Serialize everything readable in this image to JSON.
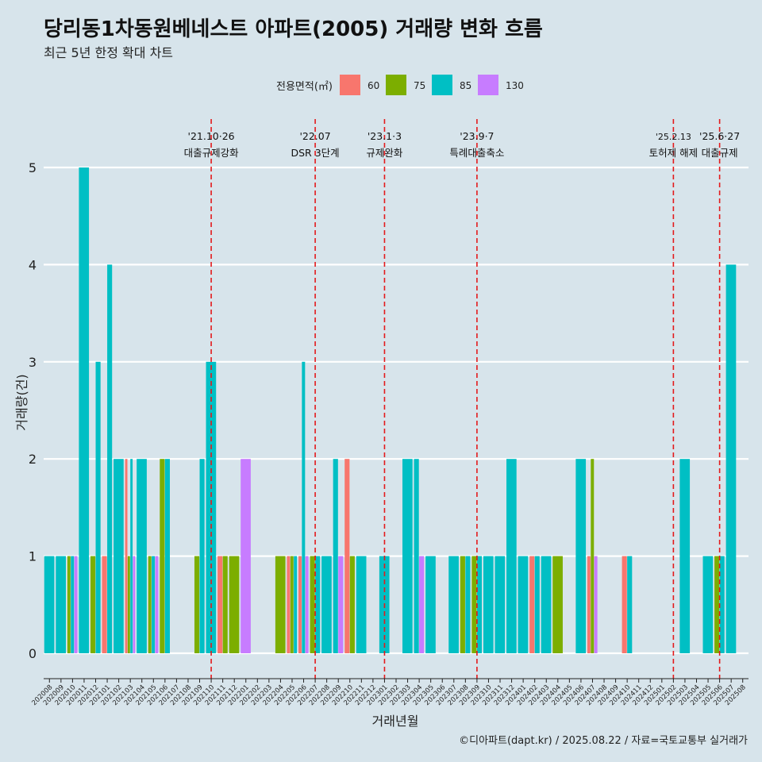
{
  "title": "당리동1차동원베네스트 아파트(2005) 거래량 변화 흐름",
  "subtitle": "최근 5년 한정 확대 차트",
  "footer": "©디아파트(dapt.kr) / 2025.08.22 / 자료=국토교통부 실거래가",
  "colors": {
    "60": "#f8766d",
    "75": "#7cae00",
    "85": "#00bfc4",
    "130": "#c77cff",
    "background": "#d7e4eb",
    "annotation_line": "#e31a1c"
  },
  "chart_data": {
    "type": "bar",
    "xlabel": "거래년월",
    "ylabel": "거래량(건)",
    "ylim": [
      0,
      5
    ],
    "yticks": [
      0,
      1,
      2,
      3,
      4,
      5
    ],
    "legend": {
      "title": "전용면적(㎡)",
      "position": "top",
      "entries": [
        "60",
        "75",
        "85",
        "130"
      ]
    },
    "grid": true,
    "categories": [
      "202008",
      "202009",
      "202010",
      "202011",
      "202012",
      "202101",
      "202102",
      "202103",
      "202104",
      "202105",
      "202106",
      "202107",
      "202108",
      "202109",
      "202110",
      "202111",
      "202112",
      "202201",
      "202202",
      "202203",
      "202204",
      "202205",
      "202206",
      "202207",
      "202208",
      "202209",
      "202210",
      "202211",
      "202212",
      "202301",
      "202302",
      "202303",
      "202304",
      "202305",
      "202306",
      "202307",
      "202308",
      "202309",
      "202310",
      "202311",
      "202312",
      "202401",
      "202402",
      "202403",
      "202404",
      "202405",
      "202406",
      "202407",
      "202408",
      "202409",
      "202410",
      "202411",
      "202412",
      "202501",
      "202502",
      "202503",
      "202504",
      "202505",
      "202506",
      "202507",
      "202508"
    ],
    "bars": [
      {
        "month": "202008",
        "area": "85",
        "count": 1
      },
      {
        "month": "202009",
        "area": "85",
        "count": 1
      },
      {
        "month": "202010",
        "area": "75",
        "count": 1
      },
      {
        "month": "202010",
        "area": "85",
        "count": 1
      },
      {
        "month": "202010",
        "area": "130",
        "count": 1
      },
      {
        "month": "202011",
        "area": "85",
        "count": 5
      },
      {
        "month": "202012",
        "area": "75",
        "count": 1
      },
      {
        "month": "202012",
        "area": "85",
        "count": 3
      },
      {
        "month": "202101",
        "area": "60",
        "count": 1
      },
      {
        "month": "202101",
        "area": "85",
        "count": 4
      },
      {
        "month": "202102",
        "area": "85",
        "count": 2
      },
      {
        "month": "202103",
        "area": "60",
        "count": 2
      },
      {
        "month": "202103",
        "area": "75",
        "count": 1
      },
      {
        "month": "202103",
        "area": "85",
        "count": 2
      },
      {
        "month": "202103",
        "area": "130",
        "count": 1
      },
      {
        "month": "202104",
        "area": "85",
        "count": 2
      },
      {
        "month": "202105",
        "area": "75",
        "count": 1
      },
      {
        "month": "202105",
        "area": "85",
        "count": 1
      },
      {
        "month": "202105",
        "area": "130",
        "count": 1
      },
      {
        "month": "202106",
        "area": "75",
        "count": 2
      },
      {
        "month": "202106",
        "area": "85",
        "count": 2
      },
      {
        "month": "202109",
        "area": "75",
        "count": 1
      },
      {
        "month": "202109",
        "area": "85",
        "count": 2
      },
      {
        "month": "202110",
        "area": "85",
        "count": 3
      },
      {
        "month": "202111",
        "area": "60",
        "count": 1
      },
      {
        "month": "202111",
        "area": "75",
        "count": 1
      },
      {
        "month": "202112",
        "area": "75",
        "count": 1
      },
      {
        "month": "202201",
        "area": "130",
        "count": 2
      },
      {
        "month": "202204",
        "area": "75",
        "count": 1
      },
      {
        "month": "202205",
        "area": "60",
        "count": 1
      },
      {
        "month": "202205",
        "area": "75",
        "count": 1
      },
      {
        "month": "202205",
        "area": "85",
        "count": 1
      },
      {
        "month": "202206",
        "area": "60",
        "count": 1
      },
      {
        "month": "202206",
        "area": "85",
        "count": 3
      },
      {
        "month": "202206",
        "area": "130",
        "count": 1
      },
      {
        "month": "202207",
        "area": "75",
        "count": 1
      },
      {
        "month": "202207",
        "area": "85",
        "count": 1
      },
      {
        "month": "202208",
        "area": "85",
        "count": 1
      },
      {
        "month": "202209",
        "area": "85",
        "count": 2
      },
      {
        "month": "202209",
        "area": "130",
        "count": 1
      },
      {
        "month": "202210",
        "area": "60",
        "count": 2
      },
      {
        "month": "202210",
        "area": "75",
        "count": 1
      },
      {
        "month": "202211",
        "area": "85",
        "count": 1
      },
      {
        "month": "202301",
        "area": "85",
        "count": 1
      },
      {
        "month": "202303",
        "area": "85",
        "count": 2
      },
      {
        "month": "202304",
        "area": "85",
        "count": 2
      },
      {
        "month": "202304",
        "area": "130",
        "count": 1
      },
      {
        "month": "202305",
        "area": "85",
        "count": 1
      },
      {
        "month": "202307",
        "area": "85",
        "count": 1
      },
      {
        "month": "202308",
        "area": "75",
        "count": 1
      },
      {
        "month": "202308",
        "area": "85",
        "count": 1
      },
      {
        "month": "202309",
        "area": "75",
        "count": 1
      },
      {
        "month": "202309",
        "area": "85",
        "count": 1
      },
      {
        "month": "202310",
        "area": "85",
        "count": 1
      },
      {
        "month": "202311",
        "area": "85",
        "count": 1
      },
      {
        "month": "202312",
        "area": "85",
        "count": 2
      },
      {
        "month": "202401",
        "area": "85",
        "count": 1
      },
      {
        "month": "202402",
        "area": "60",
        "count": 1
      },
      {
        "month": "202402",
        "area": "85",
        "count": 1
      },
      {
        "month": "202403",
        "area": "85",
        "count": 1
      },
      {
        "month": "202404",
        "area": "75",
        "count": 1
      },
      {
        "month": "202406",
        "area": "85",
        "count": 2
      },
      {
        "month": "202407",
        "area": "60",
        "count": 1
      },
      {
        "month": "202407",
        "area": "75",
        "count": 2
      },
      {
        "month": "202407",
        "area": "130",
        "count": 1
      },
      {
        "month": "202410",
        "area": "60",
        "count": 1
      },
      {
        "month": "202410",
        "area": "85",
        "count": 1
      },
      {
        "month": "202503",
        "area": "85",
        "count": 2
      },
      {
        "month": "202505",
        "area": "85",
        "count": 1
      },
      {
        "month": "202506",
        "area": "75",
        "count": 1
      },
      {
        "month": "202506",
        "area": "85",
        "count": 1
      },
      {
        "month": "202507",
        "area": "85",
        "count": 4
      }
    ],
    "annotations": [
      {
        "month": "202110",
        "date": "'21.10·26",
        "label": "대출규제강화"
      },
      {
        "month": "202207",
        "date": "'22.07",
        "label": "DSR 3단계"
      },
      {
        "month": "202301",
        "date": "'23.1·3",
        "label": "규제완화"
      },
      {
        "month": "202309",
        "date": "'23.9·7",
        "label": "특례대출축소"
      },
      {
        "month": "202502",
        "date": "'25.2.13",
        "label": "토허제 해제"
      },
      {
        "month": "202506",
        "date": "'25.6·27",
        "label": "대출규제"
      }
    ]
  }
}
